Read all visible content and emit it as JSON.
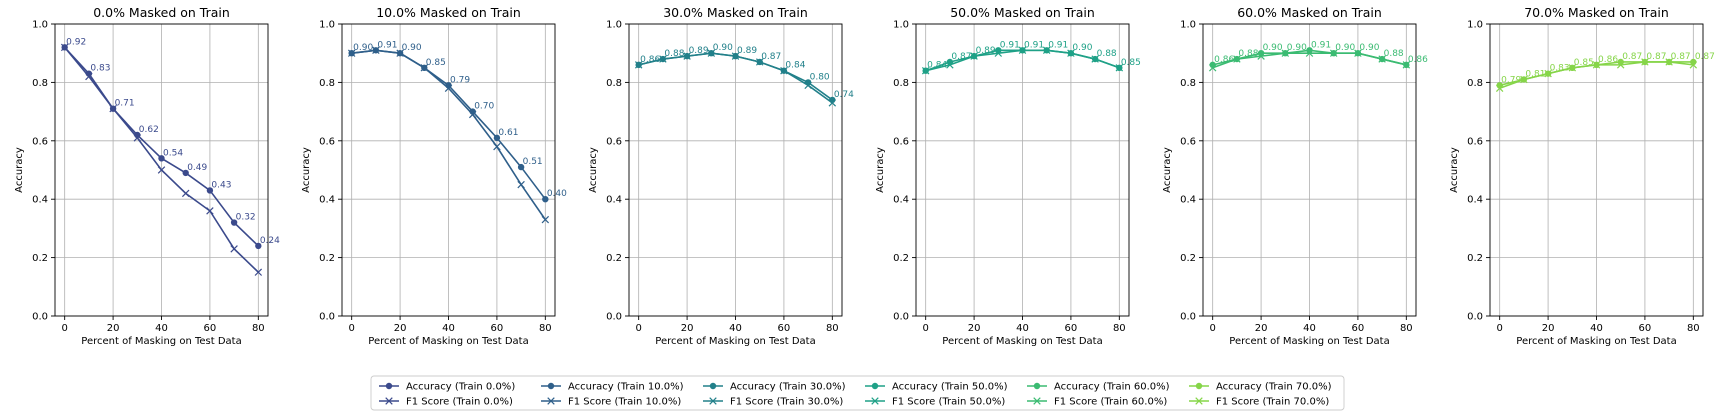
{
  "chart_data": [
    {
      "type": "line",
      "title": "0.0% Masked on Train",
      "xlabel": "Percent of Masking on Test Data",
      "ylabel": "Accuracy",
      "x": [
        0,
        10,
        20,
        30,
        40,
        50,
        60,
        70,
        80
      ],
      "xticks": [
        "0",
        "20",
        "40",
        "60",
        "80"
      ],
      "yticks": [
        "0.0",
        "0.2",
        "0.4",
        "0.6",
        "0.8",
        "1.0"
      ],
      "xlim": [
        -4,
        84
      ],
      "ylim": [
        0,
        1
      ],
      "grid": true,
      "color": "#3b4a8c",
      "series": [
        {
          "name": "Accuracy (Train 0.0%)",
          "marker": "circle",
          "values": [
            0.92,
            0.83,
            0.71,
            0.62,
            0.54,
            0.49,
            0.43,
            0.32,
            0.24
          ]
        },
        {
          "name": "F1 Score (Train 0.0%)",
          "marker": "x",
          "values": [
            0.92,
            0.82,
            0.71,
            0.61,
            0.5,
            0.42,
            0.36,
            0.23,
            0.15
          ]
        }
      ],
      "data_labels": [
        "0.92",
        "0.83",
        "0.71",
        "0.62",
        "0.54",
        "0.49",
        "0.43",
        "0.32",
        "0.24"
      ]
    },
    {
      "type": "line",
      "title": "10.0% Masked on Train",
      "xlabel": "Percent of Masking on Test Data",
      "ylabel": "Accuracy",
      "x": [
        0,
        10,
        20,
        30,
        40,
        50,
        60,
        70,
        80
      ],
      "xticks": [
        "0",
        "20",
        "40",
        "60",
        "80"
      ],
      "yticks": [
        "0.0",
        "0.2",
        "0.4",
        "0.6",
        "0.8",
        "1.0"
      ],
      "xlim": [
        -4,
        84
      ],
      "ylim": [
        0,
        1
      ],
      "grid": true,
      "color": "#2f5f8a",
      "series": [
        {
          "name": "Accuracy (Train 10.0%)",
          "marker": "circle",
          "values": [
            0.9,
            0.91,
            0.9,
            0.85,
            0.79,
            0.7,
            0.61,
            0.51,
            0.4
          ]
        },
        {
          "name": "F1 Score (Train 10.0%)",
          "marker": "x",
          "values": [
            0.9,
            0.91,
            0.9,
            0.85,
            0.78,
            0.69,
            0.58,
            0.45,
            0.33
          ]
        }
      ],
      "data_labels": [
        "0.90",
        "0.91",
        "0.90",
        "0.85",
        "0.79",
        "0.70",
        "0.61",
        "0.51",
        "0.40"
      ]
    },
    {
      "type": "line",
      "title": "30.0% Masked on Train",
      "xlabel": "Percent of Masking on Test Data",
      "ylabel": "Accuracy",
      "x": [
        0,
        10,
        20,
        30,
        40,
        50,
        60,
        70,
        80
      ],
      "xticks": [
        "0",
        "20",
        "40",
        "60",
        "80"
      ],
      "yticks": [
        "0.0",
        "0.2",
        "0.4",
        "0.6",
        "0.8",
        "1.0"
      ],
      "xlim": [
        -4,
        84
      ],
      "ylim": [
        0,
        1
      ],
      "grid": true,
      "color": "#22808a",
      "series": [
        {
          "name": "Accuracy (Train 30.0%)",
          "marker": "circle",
          "values": [
            0.86,
            0.88,
            0.89,
            0.9,
            0.89,
            0.87,
            0.84,
            0.8,
            0.74
          ]
        },
        {
          "name": "F1 Score (Train 30.0%)",
          "marker": "x",
          "values": [
            0.86,
            0.88,
            0.89,
            0.9,
            0.89,
            0.87,
            0.84,
            0.79,
            0.73
          ]
        }
      ],
      "data_labels": [
        "0.86",
        "0.88",
        "0.89",
        "0.90",
        "0.89",
        "0.87",
        "0.84",
        "0.80",
        "0.74"
      ]
    },
    {
      "type": "line",
      "title": "50.0% Masked on Train",
      "xlabel": "Percent of Masking on Test Data",
      "ylabel": "Accuracy",
      "x": [
        0,
        10,
        20,
        30,
        40,
        50,
        60,
        70,
        80
      ],
      "xticks": [
        "0",
        "20",
        "40",
        "60",
        "80"
      ],
      "yticks": [
        "0.0",
        "0.2",
        "0.4",
        "0.6",
        "0.8",
        "1.0"
      ],
      "xlim": [
        -4,
        84
      ],
      "ylim": [
        0,
        1
      ],
      "grid": true,
      "color": "#1fa187",
      "series": [
        {
          "name": "Accuracy (Train 50.0%)",
          "marker": "circle",
          "values": [
            0.84,
            0.87,
            0.89,
            0.91,
            0.91,
            0.91,
            0.9,
            0.88,
            0.85
          ]
        },
        {
          "name": "F1 Score (Train 50.0%)",
          "marker": "x",
          "values": [
            0.84,
            0.86,
            0.89,
            0.9,
            0.91,
            0.91,
            0.9,
            0.88,
            0.85
          ]
        }
      ],
      "data_labels": [
        "0.84",
        "0.87",
        "0.89",
        "0.91",
        "0.91",
        "0.91",
        "0.90",
        "0.88",
        "0.85"
      ]
    },
    {
      "type": "line",
      "title": "60.0% Masked on Train",
      "xlabel": "Percent of Masking on Test Data",
      "ylabel": "Accuracy",
      "x": [
        0,
        10,
        20,
        30,
        40,
        50,
        60,
        70,
        80
      ],
      "xticks": [
        "0",
        "20",
        "40",
        "60",
        "80"
      ],
      "yticks": [
        "0.0",
        "0.2",
        "0.4",
        "0.6",
        "0.8",
        "1.0"
      ],
      "xlim": [
        -4,
        84
      ],
      "ylim": [
        0,
        1
      ],
      "grid": true,
      "color": "#3bbb72",
      "series": [
        {
          "name": "Accuracy (Train 60.0%)",
          "marker": "circle",
          "values": [
            0.86,
            0.88,
            0.9,
            0.9,
            0.91,
            0.9,
            0.9,
            0.88,
            0.86
          ]
        },
        {
          "name": "F1 Score (Train 60.0%)",
          "marker": "x",
          "values": [
            0.85,
            0.88,
            0.89,
            0.9,
            0.9,
            0.9,
            0.9,
            0.88,
            0.86
          ]
        }
      ],
      "data_labels": [
        "0.86",
        "0.88",
        "0.90",
        "0.90",
        "0.91",
        "0.90",
        "0.90",
        "0.88",
        "0.86"
      ]
    },
    {
      "type": "line",
      "title": "70.0% Masked on Train",
      "xlabel": "Percent of Masking on Test Data",
      "ylabel": "Accuracy",
      "x": [
        0,
        10,
        20,
        30,
        40,
        50,
        60,
        70,
        80
      ],
      "xticks": [
        "0",
        "20",
        "40",
        "60",
        "80"
      ],
      "yticks": [
        "0.0",
        "0.2",
        "0.4",
        "0.6",
        "0.8",
        "1.0"
      ],
      "xlim": [
        -4,
        84
      ],
      "ylim": [
        0,
        1
      ],
      "grid": true,
      "color": "#86d549",
      "series": [
        {
          "name": "Accuracy (Train 70.0%)",
          "marker": "circle",
          "values": [
            0.79,
            0.81,
            0.83,
            0.85,
            0.86,
            0.87,
            0.87,
            0.87,
            0.87
          ]
        },
        {
          "name": "F1 Score (Train 70.0%)",
          "marker": "x",
          "values": [
            0.78,
            0.81,
            0.83,
            0.85,
            0.86,
            0.86,
            0.87,
            0.87,
            0.86
          ]
        }
      ],
      "data_labels": [
        "0.79",
        "0.81",
        "0.83",
        "0.85",
        "0.86",
        "0.87",
        "0.87",
        "0.87",
        "0.87"
      ]
    }
  ],
  "legend": {
    "placement": "bottom-center",
    "columns": 6,
    "entries": [
      [
        "Accuracy (Train 0.0%)",
        "F1 Score (Train 0.0%)"
      ],
      [
        "Accuracy (Train 10.0%)",
        "F1 Score (Train 10.0%)"
      ],
      [
        "Accuracy (Train 30.0%)",
        "F1 Score (Train 30.0%)"
      ],
      [
        "Accuracy (Train 50.0%)",
        "F1 Score (Train 50.0%)"
      ],
      [
        "Accuracy (Train 60.0%)",
        "F1 Score (Train 60.0%)"
      ],
      [
        "Accuracy (Train 70.0%)",
        "F1 Score (Train 70.0%)"
      ]
    ]
  }
}
